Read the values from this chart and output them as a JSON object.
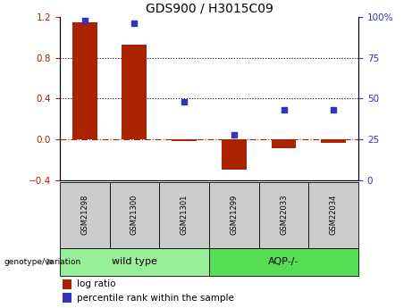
{
  "title": "GDS900 / H3015C09",
  "categories": [
    "GSM21298",
    "GSM21300",
    "GSM21301",
    "GSM21299",
    "GSM22033",
    "GSM22034"
  ],
  "log_ratio": [
    1.15,
    0.93,
    -0.02,
    -0.3,
    -0.09,
    -0.03
  ],
  "percentile_rank": [
    98,
    96,
    48,
    28,
    43,
    43
  ],
  "groups": [
    {
      "label": "wild type",
      "indices": [
        0,
        1,
        2
      ],
      "color": "#99ee99"
    },
    {
      "label": "AQP-/-",
      "indices": [
        3,
        4,
        5
      ],
      "color": "#55dd55"
    }
  ],
  "bar_color": "#aa2200",
  "dot_color": "#3333bb",
  "ylim_left": [
    -0.4,
    1.2
  ],
  "ylim_right": [
    0,
    100
  ],
  "yticks_left": [
    -0.4,
    0.0,
    0.4,
    0.8,
    1.2
  ],
  "yticks_right": [
    0,
    25,
    50,
    75,
    100
  ],
  "hline_y": [
    0.4,
    0.8
  ],
  "hline_color": "black",
  "zero_line_color": "#aa2200",
  "background_color": "#ffffff",
  "legend_log_ratio_label": "log ratio",
  "legend_percentile_label": "percentile rank within the sample",
  "genotype_label": "genotype/variation",
  "bar_width": 0.5,
  "sample_box_color": "#cccccc",
  "title_fontsize": 10,
  "axis_fontsize": 8,
  "tick_fontsize": 7.5,
  "legend_fontsize": 7.5,
  "group_fontsize": 8,
  "sample_fontsize": 6
}
